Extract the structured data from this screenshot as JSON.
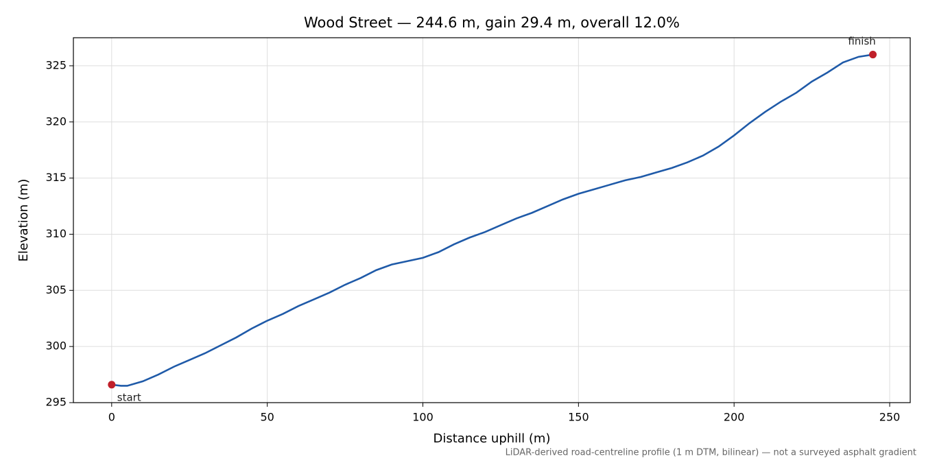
{
  "chart_data": {
    "type": "line",
    "title": "Wood Street — 244.6 m, gain 29.4 m, overall 12.0%",
    "xlabel": "Distance uphill (m)",
    "ylabel": "Elevation (m)",
    "footnote": "LiDAR-derived road-centreline profile (1 m DTM, bilinear) — not a surveyed asphalt gradient",
    "x": [
      0,
      3,
      5,
      10,
      15,
      20,
      25,
      30,
      35,
      40,
      45,
      50,
      55,
      60,
      65,
      70,
      75,
      80,
      85,
      90,
      95,
      100,
      105,
      110,
      115,
      120,
      125,
      130,
      135,
      140,
      145,
      150,
      155,
      160,
      165,
      170,
      175,
      180,
      185,
      190,
      195,
      200,
      205,
      210,
      215,
      220,
      225,
      230,
      235,
      240,
      244.6
    ],
    "series": [
      {
        "color": "#1f5aa8",
        "values": [
          296.6,
          296.5,
          296.5,
          296.9,
          297.5,
          298.2,
          298.8,
          299.4,
          300.1,
          300.8,
          301.6,
          302.3,
          302.9,
          303.6,
          304.2,
          304.8,
          305.5,
          306.1,
          306.8,
          307.3,
          307.6,
          307.9,
          308.4,
          309.1,
          309.7,
          310.2,
          310.8,
          311.4,
          311.9,
          312.5,
          313.1,
          313.6,
          314.0,
          314.4,
          314.8,
          315.1,
          315.5,
          315.9,
          316.4,
          317.0,
          317.8,
          318.8,
          319.9,
          320.9,
          321.8,
          322.6,
          323.6,
          324.4,
          325.3,
          325.8,
          326.0
        ]
      }
    ],
    "markers": {
      "color": "#c0202a",
      "x": [
        0,
        244.6
      ],
      "values": [
        296.6,
        326.0
      ],
      "labels": [
        "start",
        "finish"
      ]
    },
    "xlim": [
      -12.3,
      256.6
    ],
    "ylim": [
      295,
      327.5
    ],
    "xticks": [
      0,
      50,
      100,
      150,
      200,
      250
    ],
    "yticks": [
      295,
      300,
      305,
      310,
      315,
      320,
      325
    ],
    "grid": true
  }
}
